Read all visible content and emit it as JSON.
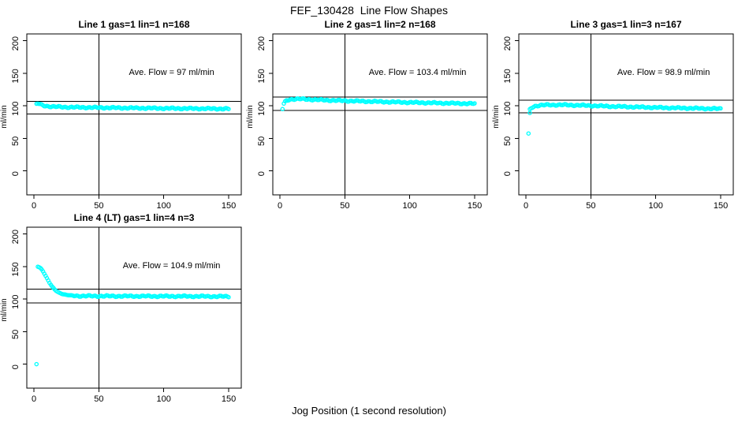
{
  "figure": {
    "title": "FEF_130428  Line Flow Shapes",
    "xlabel": "Jog Position (1 second resolution)",
    "ylabel": "ml/min",
    "background": "#ffffff",
    "point_color": "#00ffff",
    "line_color": "#000000",
    "text_color": "#000000"
  },
  "chart_data": {
    "type": "scatter",
    "layout": "4 panels (3 top row, 1 bottom-left), shared axes style",
    "x_tick_labels": [
      "0",
      "50",
      "100",
      "150"
    ],
    "x_tick_values": [
      0,
      50,
      100,
      150
    ],
    "y_tick_labels": [
      "0",
      "50",
      "100",
      "150",
      "200"
    ],
    "y_tick_values": [
      0,
      50,
      100,
      150,
      200
    ],
    "xlim": [
      -5.5,
      159.7
    ],
    "ylim": [
      -36.8,
      210.5
    ],
    "ylabel": "ml/min",
    "vline_x": 50,
    "grid": "off",
    "marker": "open-circle",
    "panels": [
      {
        "title": "Line 1 gas=1 lin=1 n=168",
        "annotation": "Ave. Flow =  97  ml/min",
        "ave_flow_ml_min": 97,
        "n": 168,
        "hlines": [
          106.7,
          87.3
        ],
        "outliers": [],
        "x_start": 2,
        "x_end": 150,
        "curve_anchors": [
          [
            2,
            102.5
          ],
          [
            3,
            103.5
          ],
          [
            4,
            103
          ],
          [
            6,
            101.2
          ],
          [
            9,
            99.8
          ],
          [
            14,
            98.8
          ],
          [
            25,
            98
          ],
          [
            45,
            97.4
          ],
          [
            70,
            96.8
          ],
          [
            100,
            96.2
          ],
          [
            125,
            95.8
          ],
          [
            150,
            95.4
          ]
        ]
      },
      {
        "title": "Line 2 gas=1 lin=2 n=168",
        "annotation": "Ave. Flow =  103.4  ml/min",
        "ave_flow_ml_min": 103.4,
        "n": 168,
        "hlines": [
          113.7,
          93.1
        ],
        "outliers": [
          [
            2,
            95
          ]
        ],
        "x_start": 3,
        "x_end": 150,
        "curve_anchors": [
          [
            3,
            103
          ],
          [
            4,
            106
          ],
          [
            5,
            108
          ],
          [
            7,
            109.6
          ],
          [
            10,
            110.4
          ],
          [
            16,
            110.5
          ],
          [
            25,
            109.6
          ],
          [
            40,
            108.4
          ],
          [
            60,
            107.2
          ],
          [
            80,
            106.2
          ],
          [
            100,
            105.2
          ],
          [
            125,
            104.2
          ],
          [
            150,
            103.3
          ]
        ]
      },
      {
        "title": "Line 3 gas=1 lin=3 n=167",
        "annotation": "Ave. Flow =  98.9  ml/min",
        "ave_flow_ml_min": 98.9,
        "n": 167,
        "hlines": [
          108.8,
          89.0
        ],
        "outliers": [
          [
            2,
            57.5
          ],
          [
            3,
            89
          ]
        ],
        "x_start": 3,
        "x_end": 150,
        "curve_anchors": [
          [
            3,
            94
          ],
          [
            4,
            96.5
          ],
          [
            5,
            98
          ],
          [
            7,
            99.6
          ],
          [
            10,
            100.6
          ],
          [
            16,
            101.4
          ],
          [
            28,
            101.5
          ],
          [
            45,
            100.6
          ],
          [
            65,
            99.2
          ],
          [
            85,
            98.2
          ],
          [
            105,
            97.2
          ],
          [
            130,
            96.2
          ],
          [
            150,
            95.4
          ]
        ]
      },
      {
        "title": "Line 4 (LT) gas=1 lin=4 n=3",
        "annotation": "Ave. Flow =  104.9  ml/min",
        "ave_flow_ml_min": 104.9,
        "n": 3,
        "hlines": [
          115.4,
          94.4
        ],
        "outliers": [
          [
            2,
            0
          ]
        ],
        "x_start": 3,
        "x_end": 150,
        "curve_anchors": [
          [
            3,
            150
          ],
          [
            4,
            149.3
          ],
          [
            5,
            147.8
          ],
          [
            6,
            145.6
          ],
          [
            7,
            142.8
          ],
          [
            8,
            139.4
          ],
          [
            9,
            135.8
          ],
          [
            10,
            132
          ],
          [
            11,
            128.4
          ],
          [
            12,
            125
          ],
          [
            13,
            122
          ],
          [
            14,
            119.2
          ],
          [
            15,
            116.8
          ],
          [
            16,
            114.8
          ],
          [
            17,
            113
          ],
          [
            18,
            111.6
          ],
          [
            19,
            110.4
          ],
          [
            20,
            109.4
          ],
          [
            22,
            107.9
          ],
          [
            24,
            106.9
          ],
          [
            26,
            106.2
          ],
          [
            28,
            105.7
          ],
          [
            30,
            105.3
          ],
          [
            35,
            104.9
          ],
          [
            45,
            104.7
          ],
          [
            60,
            104.6
          ],
          [
            80,
            104.5
          ],
          [
            100,
            104.4
          ],
          [
            120,
            104.3
          ],
          [
            150,
            104
          ]
        ]
      }
    ]
  }
}
